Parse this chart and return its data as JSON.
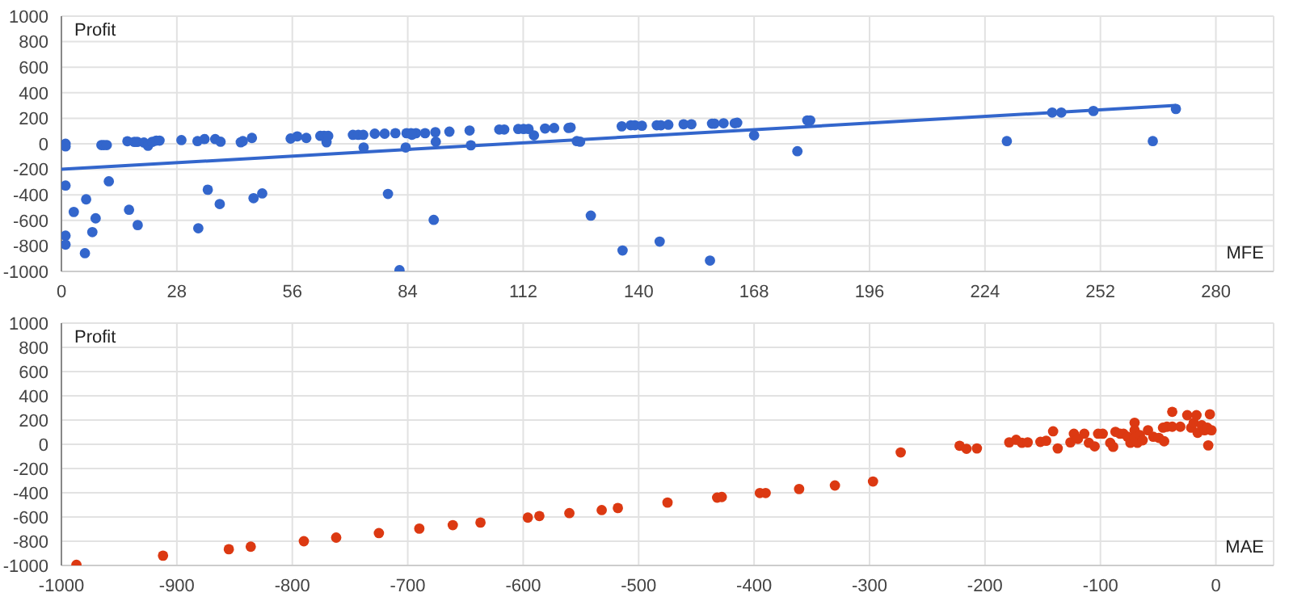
{
  "chart_data": [
    {
      "type": "scatter",
      "ylabel": "Profit",
      "xlabel": "MFE",
      "xlim": [
        0,
        294
      ],
      "xticks": [
        0,
        28,
        56,
        84,
        112,
        140,
        168,
        196,
        224,
        252,
        280
      ],
      "ylim": [
        -1000,
        1000
      ],
      "yticks": [
        -1000,
        -800,
        -600,
        -400,
        -200,
        0,
        200,
        400,
        600,
        800,
        1000
      ],
      "grid": true,
      "marker": "circle",
      "series": [
        {
          "color": "#3366cc",
          "x": [
            1,
            1,
            1,
            1,
            1,
            3,
            6,
            5.7,
            8.3,
            7.5,
            9.7,
            10.3,
            11,
            11.5,
            16,
            17.7,
            18.4,
            20,
            21,
            22,
            23,
            23.8,
            16.4,
            18.5,
            29.1,
            33,
            34.7,
            37.3,
            38.6,
            33.2,
            35.5,
            38.4,
            43.5,
            44,
            46.2,
            46.6,
            48.7,
            55.6,
            57.2,
            59.4,
            62.8,
            63.7,
            64.3,
            64.7,
            70.7,
            72,
            73.2,
            73.3,
            76,
            78.4,
            81,
            79.2,
            82,
            83.7,
            84.8,
            86,
            88.2,
            85,
            83.5,
            90.3,
            90.7,
            90.8,
            94.1,
            99,
            99.3,
            106.2,
            107.4,
            110.8,
            112.1,
            113.3,
            114.6,
            117.3,
            119.5,
            123,
            123.5,
            125,
            125.8,
            128.4,
            135.9,
            136.1,
            138.1,
            139.1,
            140.8,
            144.4,
            145.4,
            147.2,
            145.1,
            150.9,
            152.8,
            157.3,
            157.8,
            158.4,
            160.6,
            163.3,
            163.9,
            168,
            178.5,
            180.9,
            181.6,
            229.3,
            240.3,
            242.5,
            250.3,
            264.7,
            270.3
          ],
          "values": [
            0,
            -20,
            -327,
            -720,
            -790,
            -534,
            -435,
            -857,
            -584,
            -692,
            -10,
            -10,
            -10,
            -294,
            20,
            15,
            15,
            10,
            -15,
            15,
            25,
            25,
            -517,
            -637,
            29,
            21,
            37,
            37,
            16,
            -662,
            -360,
            -472,
            12,
            21,
            46,
            -426,
            -389,
            41,
            58,
            46,
            62,
            62,
            12,
            62,
            70,
            70,
            70,
            -29,
            79,
            79,
            83,
            -393,
            -990,
            83,
            83,
            83,
            83,
            71,
            -29,
            -596,
            91,
            16,
            95,
            104,
            -12,
            112,
            112,
            116,
            116,
            116,
            66,
            120,
            124,
            124,
            128,
            21,
            16,
            -563,
            137,
            -836,
            145,
            145,
            141,
            145,
            145,
            149,
            -766,
            153,
            153,
            -915,
            158,
            158,
            161,
            161,
            165,
            66,
            -58,
            183,
            183,
            21,
            245,
            245,
            257,
            21,
            273
          ]
        },
        {
          "type": "line",
          "color": "#3366cc",
          "marker": "none",
          "x": [
            0,
            270.3
          ],
          "values": [
            -200,
            300
          ]
        }
      ]
    },
    {
      "type": "scatter",
      "ylabel": "Profit",
      "xlabel": "MAE",
      "xlim": [
        -1000,
        50
      ],
      "xticks": [
        -1000,
        -900,
        -800,
        -700,
        -600,
        -500,
        -400,
        -300,
        -200,
        -100,
        0
      ],
      "ylim": [
        -1000,
        1000
      ],
      "yticks": [
        -1000,
        -800,
        -600,
        -400,
        -200,
        0,
        200,
        400,
        600,
        800,
        1000
      ],
      "grid": true,
      "marker": "circle",
      "series": [
        {
          "color": "#dc3912",
          "x": [
            -987,
            -912,
            -855,
            -836,
            -790,
            -762,
            -725,
            -690,
            -661,
            -637,
            -596,
            -586,
            -560,
            -532,
            -518,
            -475,
            -432,
            -428,
            -395,
            -390,
            -361,
            -330,
            -297,
            -273,
            -222,
            -216,
            -207,
            -179,
            -173,
            -168,
            -163,
            -152,
            -147,
            -141,
            -137,
            -126,
            -123,
            -119.5,
            -114,
            -110,
            -105,
            -102,
            -98,
            -91.5,
            -89,
            -87,
            -83,
            -80,
            -76.5,
            -74,
            -70.4,
            -70.4,
            -70.4,
            -68,
            -65.8,
            -63.4,
            -58.8,
            -54.2,
            -49.4,
            -45.8,
            -44.8,
            -42.4,
            -37.8,
            -37.8,
            -30.8,
            -24.8,
            -21.4,
            -19.2,
            -16.8,
            -15.8,
            -12.2,
            -9.8,
            -7.4,
            -6.6,
            -5.2,
            -3.8
          ],
          "values": [
            -995,
            -919,
            -866,
            -845,
            -800,
            -770,
            -733,
            -696,
            -667,
            -646,
            -605,
            -592,
            -568,
            -543,
            -526,
            -481,
            -440,
            -435,
            -402,
            -402,
            -369,
            -340,
            -307,
            -67,
            -12,
            -37,
            -34,
            16,
            37,
            12,
            16,
            20,
            29,
            107,
            -34,
            16,
            87,
            45,
            87,
            12,
            -17,
            87,
            87,
            12,
            -21,
            103,
            87,
            87,
            62,
            12,
            178,
            116,
            53,
            12,
            75,
            33,
            116,
            62,
            53,
            137,
            25,
            145,
            145,
            268,
            145,
            240,
            137,
            178,
            240,
            95,
            157,
            116,
            137,
            -9,
            248,
            116
          ]
        }
      ]
    }
  ]
}
